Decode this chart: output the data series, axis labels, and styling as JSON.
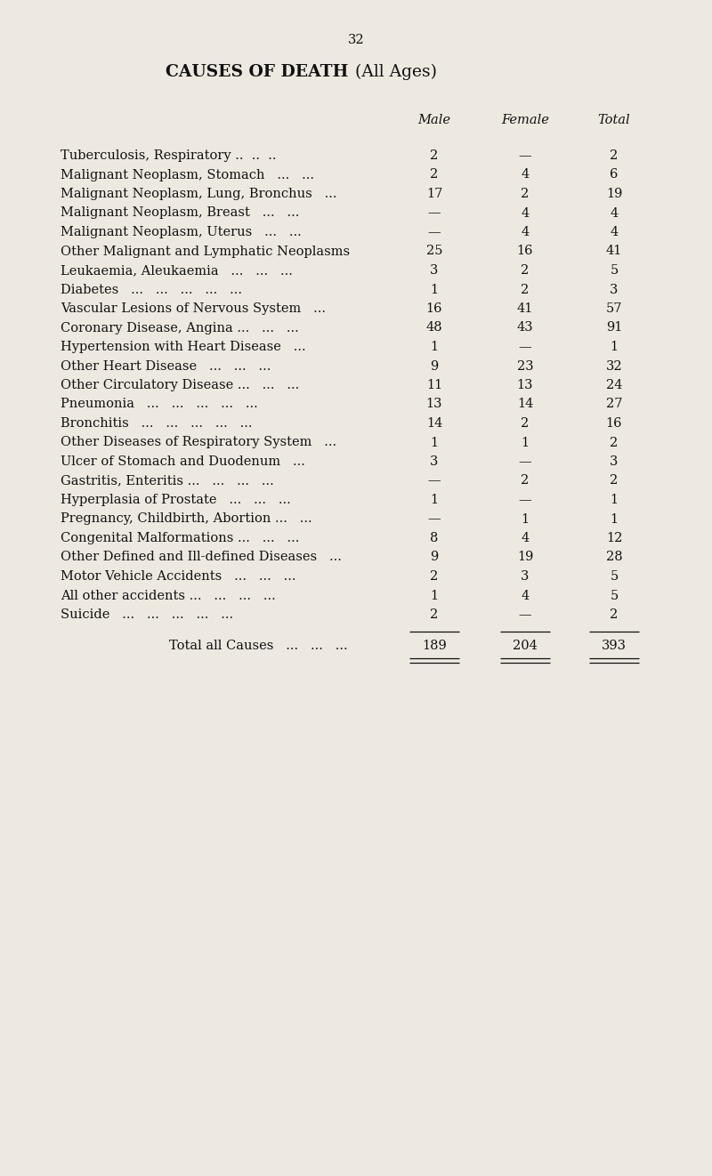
{
  "page_number": "32",
  "title_bold": "CAUSES OF DEATH",
  "title_normal": "(All Ages)",
  "col_headers": [
    "Male",
    "Female",
    "Total"
  ],
  "rows": [
    {
      "cause": "Tuberculosis, Respiratory ..  ..  ..",
      "male": "2",
      "female": "—",
      "total": "2"
    },
    {
      "cause": "Malignant Neoplasm, Stomach   ...   ...",
      "male": "2",
      "female": "4",
      "total": "6"
    },
    {
      "cause": "Malignant Neoplasm, Lung, Bronchus   ...",
      "male": "17",
      "female": "2",
      "total": "19"
    },
    {
      "cause": "Malignant Neoplasm, Breast   ...   ...",
      "male": "—",
      "female": "4",
      "total": "4"
    },
    {
      "cause": "Malignant Neoplasm, Uterus   ...   ...",
      "male": "—",
      "female": "4",
      "total": "4"
    },
    {
      "cause": "Other Malignant and Lymphatic Neoplasms",
      "male": "25",
      "female": "16",
      "total": "41"
    },
    {
      "cause": "Leukaemia, Aleukaemia   ...   ...   ...",
      "male": "3",
      "female": "2",
      "total": "5"
    },
    {
      "cause": "Diabetes   ...   ...   ...   ...   ...",
      "male": "1",
      "female": "2",
      "total": "3"
    },
    {
      "cause": "Vascular Lesions of Nervous System   ...",
      "male": "16",
      "female": "41",
      "total": "57"
    },
    {
      "cause": "Coronary Disease, Angina ...   ...   ...",
      "male": "48",
      "female": "43",
      "total": "91"
    },
    {
      "cause": "Hypertension with Heart Disease   ...",
      "male": "1",
      "female": "—",
      "total": "1"
    },
    {
      "cause": "Other Heart Disease   ...   ...   ...",
      "male": "9",
      "female": "23",
      "total": "32"
    },
    {
      "cause": "Other Circulatory Disease ...   ...   ...",
      "male": "11",
      "female": "13",
      "total": "24"
    },
    {
      "cause": "Pneumonia   ...   ...   ...   ...   ...",
      "male": "13",
      "female": "14",
      "total": "27"
    },
    {
      "cause": "Bronchitis   ...   ...   ...   ...   ...",
      "male": "14",
      "female": "2",
      "total": "16"
    },
    {
      "cause": "Other Diseases of Respiratory System   ...",
      "male": "1",
      "female": "1",
      "total": "2"
    },
    {
      "cause": "Ulcer of Stomach and Duodenum   ...",
      "male": "3",
      "female": "—",
      "total": "3"
    },
    {
      "cause": "Gastritis, Enteritis ...   ...   ...   ...",
      "male": "—",
      "female": "2",
      "total": "2"
    },
    {
      "cause": "Hyperplasia of Prostate   ...   ...   ...",
      "male": "1",
      "female": "—",
      "total": "1"
    },
    {
      "cause": "Pregnancy, Childbirth, Abortion ...   ...",
      "male": "—",
      "female": "1",
      "total": "1"
    },
    {
      "cause": "Congenital Malformations ...   ...   ...",
      "male": "8",
      "female": "4",
      "total": "12"
    },
    {
      "cause": "Other Defined and Ill-defined Diseases   ...",
      "male": "9",
      "female": "19",
      "total": "28"
    },
    {
      "cause": "Motor Vehicle Accidents   ...   ...   ...",
      "male": "2",
      "female": "3",
      "total": "5"
    },
    {
      "cause": "All other accidents ...   ...   ...   ...",
      "male": "1",
      "female": "4",
      "total": "5"
    },
    {
      "cause": "Suicide   ...   ...   ...   ...   ...",
      "male": "2",
      "female": "—",
      "total": "2"
    }
  ],
  "total_row": {
    "cause": "Total all Causes   ...   ...   ...",
    "male": "189",
    "female": "204",
    "total": "393"
  },
  "bg_color": "#ede9e0",
  "text_color": "#111111",
  "font_size_title": 13.5,
  "font_size_body": 10.5,
  "font_size_page": 10.5
}
